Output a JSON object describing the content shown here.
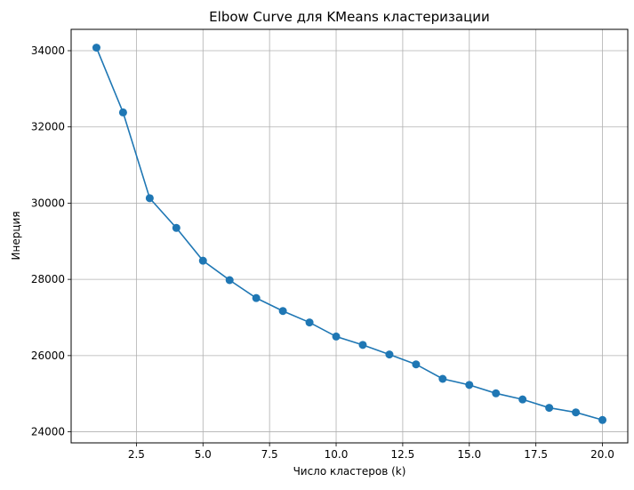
{
  "chart_data": {
    "type": "line",
    "title": "Elbow Curve для KMeans кластеризации",
    "xlabel": "Число кластеров (k)",
    "ylabel": "Инерция",
    "xlim": [
      0.05,
      20.95
    ],
    "ylim": [
      23710,
      34560
    ],
    "grid": true,
    "x_ticks": [
      2.5,
      5.0,
      7.5,
      10.0,
      12.5,
      15.0,
      17.5,
      20.0
    ],
    "x_tick_labels": [
      "2.5",
      "5.0",
      "7.5",
      "10.0",
      "12.5",
      "15.0",
      "17.5",
      "20.0"
    ],
    "y_ticks": [
      24000,
      26000,
      28000,
      30000,
      32000,
      34000
    ],
    "y_tick_labels": [
      "24000",
      "26000",
      "28000",
      "30000",
      "32000",
      "34000"
    ],
    "series": [
      {
        "color": "#1f77b4",
        "marker": "circle",
        "x": [
          1,
          2,
          3,
          4,
          5,
          6,
          7,
          8,
          9,
          10,
          11,
          12,
          13,
          14,
          15,
          16,
          17,
          18,
          19,
          20
        ],
        "values": [
          34080,
          32380,
          30130,
          29350,
          28490,
          27980,
          27510,
          27170,
          26870,
          26500,
          26280,
          26030,
          25770,
          25390,
          25230,
          25010,
          24850,
          24630,
          24510,
          24310
        ]
      }
    ]
  }
}
